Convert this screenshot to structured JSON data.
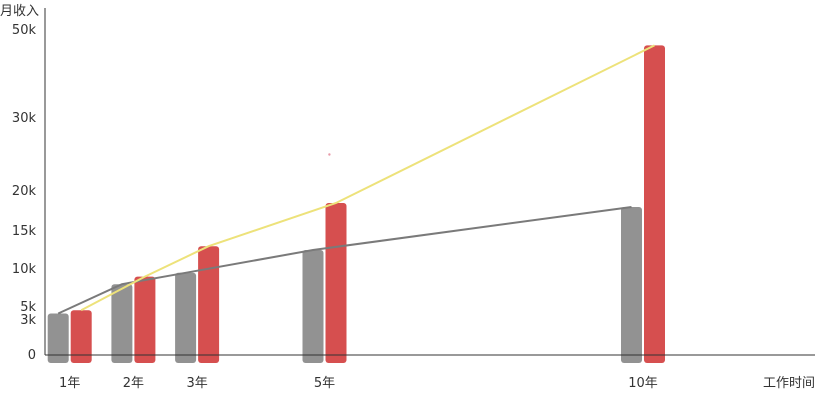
{
  "chart_data": {
    "type": "bar",
    "ylabel": "月收入",
    "xlabel": "工作时间",
    "categories": [
      "1年",
      "2年",
      "3年",
      "5年",
      "10年"
    ],
    "x_positions": [
      1,
      2,
      3,
      5,
      10
    ],
    "x_axis_max": 12,
    "y_ticks": [
      {
        "value": 0,
        "label": "0"
      },
      {
        "value": 3,
        "label": "3k"
      },
      {
        "value": 5,
        "label": "5k"
      },
      {
        "value": 10,
        "label": "10k"
      },
      {
        "value": 15,
        "label": "15k"
      },
      {
        "value": 20,
        "label": "20k"
      },
      {
        "value": 30,
        "label": "30k"
      },
      {
        "value": 50,
        "label": "50k"
      }
    ],
    "series": [
      {
        "values": [
          4,
          8,
          9.5,
          12.5,
          18
        ],
        "color": "#929292",
        "line_color": "#7a7a7a"
      },
      {
        "values": [
          4.5,
          9,
          13,
          18.5,
          46.5
        ],
        "color": "#d64f4f",
        "line_color": "#ede27a"
      }
    ],
    "grid": false,
    "legend": "none",
    "axis_color": "#333333",
    "marker": {
      "x": 3.35,
      "y": 25,
      "color": "#e89aa8"
    }
  }
}
